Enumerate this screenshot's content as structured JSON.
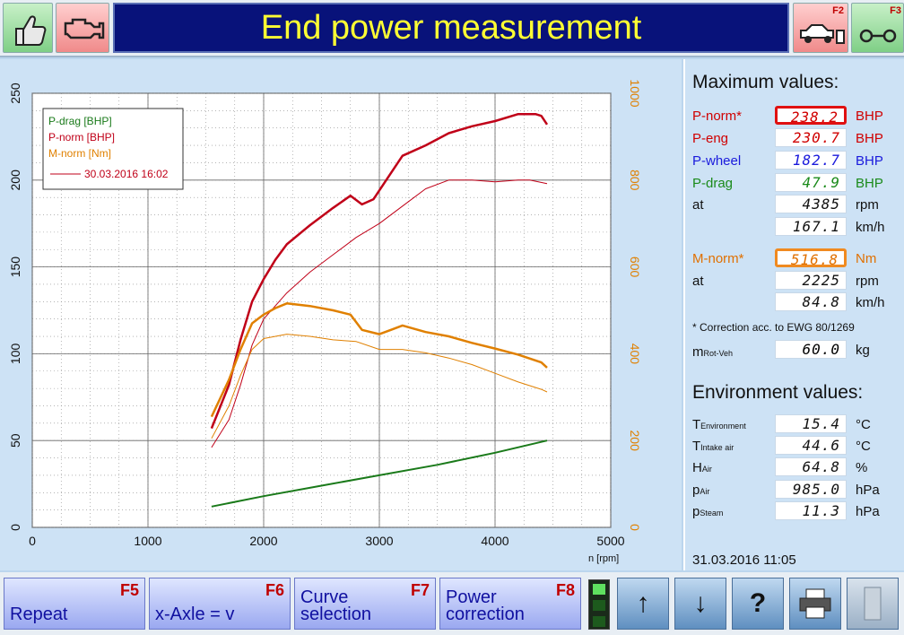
{
  "header": {
    "title": "End power measurement",
    "f2": "F2",
    "f3": "F3"
  },
  "chart_data": {
    "type": "line",
    "xlabel": "n [rpm]",
    "x_ticks": [
      0,
      1000,
      2000,
      3000,
      4000,
      5000
    ],
    "xlim": [
      0,
      5000
    ],
    "y_left_ticks": [
      0,
      50,
      100,
      150,
      200,
      250
    ],
    "ylim_left": [
      0,
      250
    ],
    "y_right_ticks": [
      0,
      200,
      400,
      600,
      800,
      1000
    ],
    "ylim_right": [
      0,
      1000
    ],
    "grid": true,
    "legend": {
      "position": "top-left",
      "entries": [
        "P-drag [BHP]",
        "P-norm [BHP]",
        "M-norm [Nm]"
      ],
      "reference": "30.03.2016 16:02"
    },
    "series": [
      {
        "name": "P-drag [BHP]",
        "axis": "left",
        "color": "#1a7a1a",
        "width": 2,
        "x": [
          1550,
          2000,
          2500,
          3000,
          3500,
          4000,
          4450
        ],
        "y": [
          12,
          18,
          24,
          30,
          36,
          43,
          50
        ]
      },
      {
        "name": "P-norm [BHP]",
        "axis": "left",
        "color": "#c00018",
        "width": 2.5,
        "x": [
          1550,
          1700,
          1800,
          1900,
          2000,
          2100,
          2200,
          2400,
          2600,
          2750,
          2850,
          2950,
          3050,
          3200,
          3400,
          3600,
          3800,
          4000,
          4200,
          4350,
          4400,
          4450
        ],
        "y": [
          57,
          82,
          108,
          130,
          143,
          154,
          163,
          174,
          184,
          191,
          186,
          189,
          199,
          214,
          220,
          227,
          231,
          234,
          238,
          238,
          237,
          232
        ]
      },
      {
        "name": "30.03.2016 16:02",
        "axis": "left",
        "color": "#c00018",
        "width": 1,
        "x": [
          1550,
          1700,
          1800,
          1900,
          2000,
          2200,
          2400,
          2600,
          2800,
          3000,
          3200,
          3400,
          3600,
          3800,
          4000,
          4200,
          4300,
          4450
        ],
        "y": [
          46,
          62,
          82,
          105,
          120,
          135,
          147,
          157,
          167,
          175,
          185,
          195,
          200,
          200,
          199,
          200,
          200,
          198
        ]
      },
      {
        "name": "M-norm [Nm]",
        "axis": "right",
        "color": "#e08000",
        "width": 2.5,
        "x": [
          1550,
          1700,
          1800,
          1900,
          2000,
          2100,
          2200,
          2400,
          2600,
          2750,
          2850,
          3000,
          3100,
          3200,
          3400,
          3600,
          3800,
          4000,
          4200,
          4400,
          4450
        ],
        "y": [
          255,
          340,
          410,
          470,
          490,
          505,
          516,
          510,
          500,
          490,
          455,
          445,
          455,
          465,
          450,
          440,
          425,
          412,
          398,
          380,
          368
        ]
      },
      {
        "name": "30.03.2016 16:02",
        "axis": "right",
        "color": "#e08000",
        "width": 1,
        "x": [
          1550,
          1700,
          1800,
          1900,
          2000,
          2200,
          2400,
          2600,
          2800,
          3000,
          3200,
          3400,
          3600,
          3800,
          4000,
          4200,
          4400,
          4450
        ],
        "y": [
          205,
          280,
          350,
          410,
          435,
          445,
          440,
          432,
          428,
          410,
          410,
          402,
          390,
          375,
          355,
          335,
          318,
          312
        ]
      }
    ]
  },
  "max_values": {
    "title": "Maximum values:",
    "rows": [
      {
        "label": "P-norm*",
        "value": "238.2",
        "unit": "BHP",
        "color": "#d00000"
      },
      {
        "label": "P-eng",
        "value": "230.7",
        "unit": "BHP",
        "color": "#d00000"
      },
      {
        "label": "P-wheel",
        "value": "182.7",
        "unit": "BHP",
        "color": "#1a1adc"
      },
      {
        "label": "P-drag",
        "value": "47.9",
        "unit": "BHP",
        "color": "#1a8a1a"
      },
      {
        "label": "at",
        "value": "4385",
        "unit": "rpm",
        "color": "#111111"
      },
      {
        "label": "",
        "value": "167.1",
        "unit": "km/h",
        "color": "#111111"
      }
    ],
    "torque_rows": [
      {
        "label": "M-norm*",
        "value": "516.8",
        "unit": "Nm",
        "color": "#e07000"
      },
      {
        "label": "at",
        "value": "2225",
        "unit": "rpm",
        "color": "#111111"
      },
      {
        "label": "",
        "value": "84.8",
        "unit": "km/h",
        "color": "#111111"
      }
    ],
    "correction_note": "* Correction acc. to EWG 80/1269",
    "mass": {
      "label_main": "m",
      "label_sub": "Rot-Veh",
      "value": "60.0",
      "unit": "kg"
    }
  },
  "environment": {
    "title": "Environment values:",
    "rows": [
      {
        "label_main": "T",
        "label_sub": "Environment",
        "value": "15.4",
        "unit": "°C"
      },
      {
        "label_main": "T",
        "label_sub": "Intake air",
        "value": "44.6",
        "unit": "°C"
      },
      {
        "label_main": "H",
        "label_sub": "Air",
        "value": "64.8",
        "unit": "%"
      },
      {
        "label_main": "p",
        "label_sub": "Air",
        "value": "985.0",
        "unit": "hPa"
      },
      {
        "label_main": "p",
        "label_sub": "Steam",
        "value": "11.3",
        "unit": "hPa"
      }
    ]
  },
  "datetime": "31.03.2016   11:05",
  "footer": {
    "buttons": [
      {
        "label": "Repeat",
        "key": "F5"
      },
      {
        "label": "x-Axle = v",
        "key": "F6"
      },
      {
        "label": "Curve selection",
        "label_l1": "Curve",
        "label_l2": "selection",
        "key": "F7"
      },
      {
        "label": "Power correction",
        "label_l1": "Power",
        "label_l2": "correction",
        "key": "F8"
      }
    ]
  }
}
